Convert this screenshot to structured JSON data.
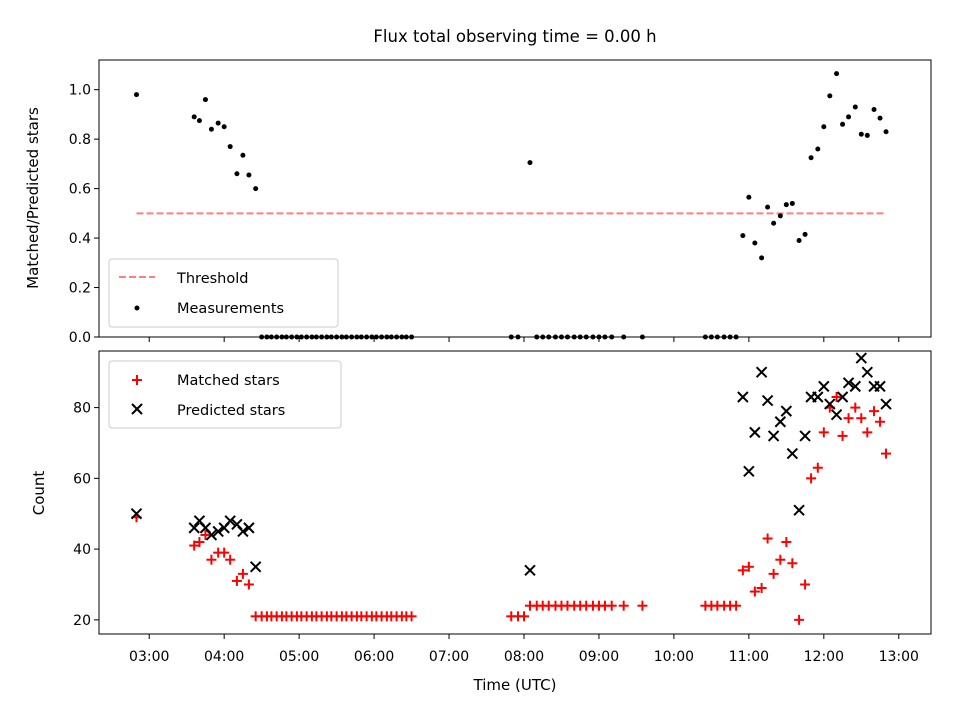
{
  "chart_data": [
    {
      "type": "scatter",
      "title": "Flux total observing time = 0.00 h",
      "xlabel": "",
      "ylabel": "Matched/Predicted stars",
      "xlim": [
        2.33,
        13.43
      ],
      "ylim": [
        0.0,
        1.12
      ],
      "xlim_note": "hours UTC",
      "yticks": [
        0.0,
        0.2,
        0.4,
        0.6,
        0.8,
        1.0
      ],
      "ytick_labels": [
        "0.0",
        "0.2",
        "0.4",
        "0.6",
        "0.8",
        "1.0"
      ],
      "legend": {
        "placement": "lower-left",
        "entries": [
          "Threshold",
          "Measurements"
        ]
      },
      "threshold": {
        "name": "Threshold",
        "y": 0.5,
        "x": [
          2.83,
          12.83
        ],
        "color": "#ff7f7f",
        "style": "dashed"
      },
      "series": [
        {
          "name": "Measurements",
          "marker": "dot",
          "color": "#000000",
          "points": [
            [
              2.83,
              0.98
            ],
            [
              3.6,
              0.89
            ],
            [
              3.67,
              0.875
            ],
            [
              3.75,
              0.96
            ],
            [
              3.83,
              0.84
            ],
            [
              3.92,
              0.865
            ],
            [
              4.0,
              0.85
            ],
            [
              4.08,
              0.77
            ],
            [
              4.17,
              0.66
            ],
            [
              4.25,
              0.735
            ],
            [
              4.33,
              0.655
            ],
            [
              4.42,
              0.6
            ],
            [
              4.5,
              0.0
            ],
            [
              4.57,
              0.0
            ],
            [
              4.63,
              0.0
            ],
            [
              4.7,
              0.0
            ],
            [
              4.77,
              0.0
            ],
            [
              4.83,
              0.0
            ],
            [
              4.9,
              0.0
            ],
            [
              4.97,
              0.0
            ],
            [
              5.03,
              0.0
            ],
            [
              5.1,
              0.0
            ],
            [
              5.17,
              0.0
            ],
            [
              5.23,
              0.0
            ],
            [
              5.3,
              0.0
            ],
            [
              5.37,
              0.0
            ],
            [
              5.43,
              0.0
            ],
            [
              5.5,
              0.0
            ],
            [
              5.57,
              0.0
            ],
            [
              5.63,
              0.0
            ],
            [
              5.7,
              0.0
            ],
            [
              5.77,
              0.0
            ],
            [
              5.83,
              0.0
            ],
            [
              5.9,
              0.0
            ],
            [
              5.97,
              0.0
            ],
            [
              6.03,
              0.0
            ],
            [
              6.1,
              0.0
            ],
            [
              6.17,
              0.0
            ],
            [
              6.23,
              0.0
            ],
            [
              6.3,
              0.0
            ],
            [
              6.37,
              0.0
            ],
            [
              6.43,
              0.0
            ],
            [
              6.5,
              0.0
            ],
            [
              7.83,
              0.0
            ],
            [
              7.92,
              0.0
            ],
            [
              8.08,
              0.705
            ],
            [
              8.17,
              0.0
            ],
            [
              8.25,
              0.0
            ],
            [
              8.33,
              0.0
            ],
            [
              8.42,
              0.0
            ],
            [
              8.5,
              0.0
            ],
            [
              8.58,
              0.0
            ],
            [
              8.67,
              0.0
            ],
            [
              8.75,
              0.0
            ],
            [
              8.83,
              0.0
            ],
            [
              8.92,
              0.0
            ],
            [
              9.0,
              0.0
            ],
            [
              9.08,
              0.0
            ],
            [
              9.17,
              0.0
            ],
            [
              9.33,
              0.0
            ],
            [
              9.58,
              0.0
            ],
            [
              10.42,
              0.0
            ],
            [
              10.5,
              0.0
            ],
            [
              10.58,
              0.0
            ],
            [
              10.67,
              0.0
            ],
            [
              10.75,
              0.0
            ],
            [
              10.83,
              0.0
            ],
            [
              10.92,
              0.41
            ],
            [
              11.0,
              0.565
            ],
            [
              11.08,
              0.38
            ],
            [
              11.17,
              0.32
            ],
            [
              11.25,
              0.525
            ],
            [
              11.33,
              0.46
            ],
            [
              11.42,
              0.49
            ],
            [
              11.5,
              0.535
            ],
            [
              11.58,
              0.54
            ],
            [
              11.67,
              0.39
            ],
            [
              11.75,
              0.415
            ],
            [
              11.83,
              0.725
            ],
            [
              11.92,
              0.76
            ],
            [
              12.0,
              0.85
            ],
            [
              12.08,
              0.975
            ],
            [
              12.17,
              1.065
            ],
            [
              12.25,
              0.86
            ],
            [
              12.33,
              0.89
            ],
            [
              12.42,
              0.93
            ],
            [
              12.5,
              0.82
            ],
            [
              12.58,
              0.815
            ],
            [
              12.67,
              0.92
            ],
            [
              12.75,
              0.885
            ],
            [
              12.83,
              0.83
            ]
          ]
        }
      ]
    },
    {
      "type": "scatter",
      "title": "",
      "xlabel": "Time (UTC)",
      "ylabel": "Count",
      "xlim": [
        2.33,
        13.43
      ],
      "ylim": [
        16,
        96
      ],
      "yticks": [
        20,
        40,
        60,
        80
      ],
      "ytick_labels": [
        "20",
        "40",
        "60",
        "80"
      ],
      "xticks": [
        3,
        4,
        5,
        6,
        7,
        8,
        9,
        10,
        11,
        12,
        13
      ],
      "xtick_labels": [
        "03:00",
        "04:00",
        "05:00",
        "06:00",
        "07:00",
        "08:00",
        "09:00",
        "10:00",
        "11:00",
        "12:00",
        "13:00"
      ],
      "legend": {
        "placement": "top-left",
        "entries": [
          "Matched stars",
          "Predicted stars"
        ]
      },
      "series": [
        {
          "name": "Matched stars",
          "marker": "plus",
          "color": "#ff0000",
          "points": [
            [
              2.83,
              49
            ],
            [
              3.6,
              41
            ],
            [
              3.67,
              42
            ],
            [
              3.75,
              44
            ],
            [
              3.83,
              37
            ],
            [
              3.92,
              39
            ],
            [
              4.0,
              39
            ],
            [
              4.08,
              37
            ],
            [
              4.17,
              31
            ],
            [
              4.25,
              33
            ],
            [
              4.33,
              30
            ],
            [
              4.42,
              21
            ],
            [
              4.5,
              21
            ],
            [
              4.57,
              21
            ],
            [
              4.63,
              21
            ],
            [
              4.7,
              21
            ],
            [
              4.77,
              21
            ],
            [
              4.83,
              21
            ],
            [
              4.9,
              21
            ],
            [
              4.97,
              21
            ],
            [
              5.03,
              21
            ],
            [
              5.1,
              21
            ],
            [
              5.17,
              21
            ],
            [
              5.23,
              21
            ],
            [
              5.3,
              21
            ],
            [
              5.37,
              21
            ],
            [
              5.43,
              21
            ],
            [
              5.5,
              21
            ],
            [
              5.57,
              21
            ],
            [
              5.63,
              21
            ],
            [
              5.7,
              21
            ],
            [
              5.77,
              21
            ],
            [
              5.83,
              21
            ],
            [
              5.9,
              21
            ],
            [
              5.97,
              21
            ],
            [
              6.03,
              21
            ],
            [
              6.1,
              21
            ],
            [
              6.17,
              21
            ],
            [
              6.23,
              21
            ],
            [
              6.3,
              21
            ],
            [
              6.37,
              21
            ],
            [
              6.43,
              21
            ],
            [
              6.5,
              21
            ],
            [
              7.83,
              21
            ],
            [
              7.92,
              21
            ],
            [
              8.0,
              21
            ],
            [
              8.08,
              24
            ],
            [
              8.17,
              24
            ],
            [
              8.25,
              24
            ],
            [
              8.33,
              24
            ],
            [
              8.42,
              24
            ],
            [
              8.5,
              24
            ],
            [
              8.58,
              24
            ],
            [
              8.67,
              24
            ],
            [
              8.75,
              24
            ],
            [
              8.83,
              24
            ],
            [
              8.92,
              24
            ],
            [
              9.0,
              24
            ],
            [
              9.08,
              24
            ],
            [
              9.17,
              24
            ],
            [
              9.33,
              24
            ],
            [
              9.58,
              24
            ],
            [
              10.42,
              24
            ],
            [
              10.5,
              24
            ],
            [
              10.58,
              24
            ],
            [
              10.67,
              24
            ],
            [
              10.75,
              24
            ],
            [
              10.83,
              24
            ],
            [
              10.92,
              34
            ],
            [
              11.0,
              35
            ],
            [
              11.08,
              28
            ],
            [
              11.17,
              29
            ],
            [
              11.25,
              43
            ],
            [
              11.33,
              33
            ],
            [
              11.42,
              37
            ],
            [
              11.5,
              42
            ],
            [
              11.58,
              36
            ],
            [
              11.67,
              20
            ],
            [
              11.75,
              30
            ],
            [
              11.83,
              60
            ],
            [
              11.92,
              63
            ],
            [
              12.0,
              73
            ],
            [
              12.08,
              80
            ],
            [
              12.17,
              83
            ],
            [
              12.25,
              72
            ],
            [
              12.33,
              77
            ],
            [
              12.42,
              80
            ],
            [
              12.5,
              77
            ],
            [
              12.58,
              73
            ],
            [
              12.67,
              79
            ],
            [
              12.75,
              76
            ],
            [
              12.83,
              67
            ]
          ]
        },
        {
          "name": "Predicted stars",
          "marker": "x",
          "color": "#000000",
          "points": [
            [
              2.83,
              50
            ],
            [
              3.6,
              46
            ],
            [
              3.67,
              48
            ],
            [
              3.75,
              46
            ],
            [
              3.83,
              44
            ],
            [
              3.92,
              45
            ],
            [
              4.0,
              46
            ],
            [
              4.08,
              48
            ],
            [
              4.17,
              47
            ],
            [
              4.25,
              45
            ],
            [
              4.33,
              46
            ],
            [
              4.42,
              35
            ],
            [
              8.08,
              34
            ],
            [
              10.92,
              83
            ],
            [
              11.0,
              62
            ],
            [
              11.08,
              73
            ],
            [
              11.17,
              90
            ],
            [
              11.25,
              82
            ],
            [
              11.33,
              72
            ],
            [
              11.42,
              76
            ],
            [
              11.5,
              79
            ],
            [
              11.58,
              67
            ],
            [
              11.67,
              51
            ],
            [
              11.75,
              72
            ],
            [
              11.83,
              83
            ],
            [
              11.92,
              83
            ],
            [
              12.0,
              86
            ],
            [
              12.08,
              81
            ],
            [
              12.17,
              78
            ],
            [
              12.25,
              83
            ],
            [
              12.33,
              87
            ],
            [
              12.42,
              86
            ],
            [
              12.5,
              94
            ],
            [
              12.58,
              90
            ],
            [
              12.67,
              86
            ],
            [
              12.75,
              86
            ],
            [
              12.83,
              81
            ]
          ]
        }
      ]
    }
  ]
}
